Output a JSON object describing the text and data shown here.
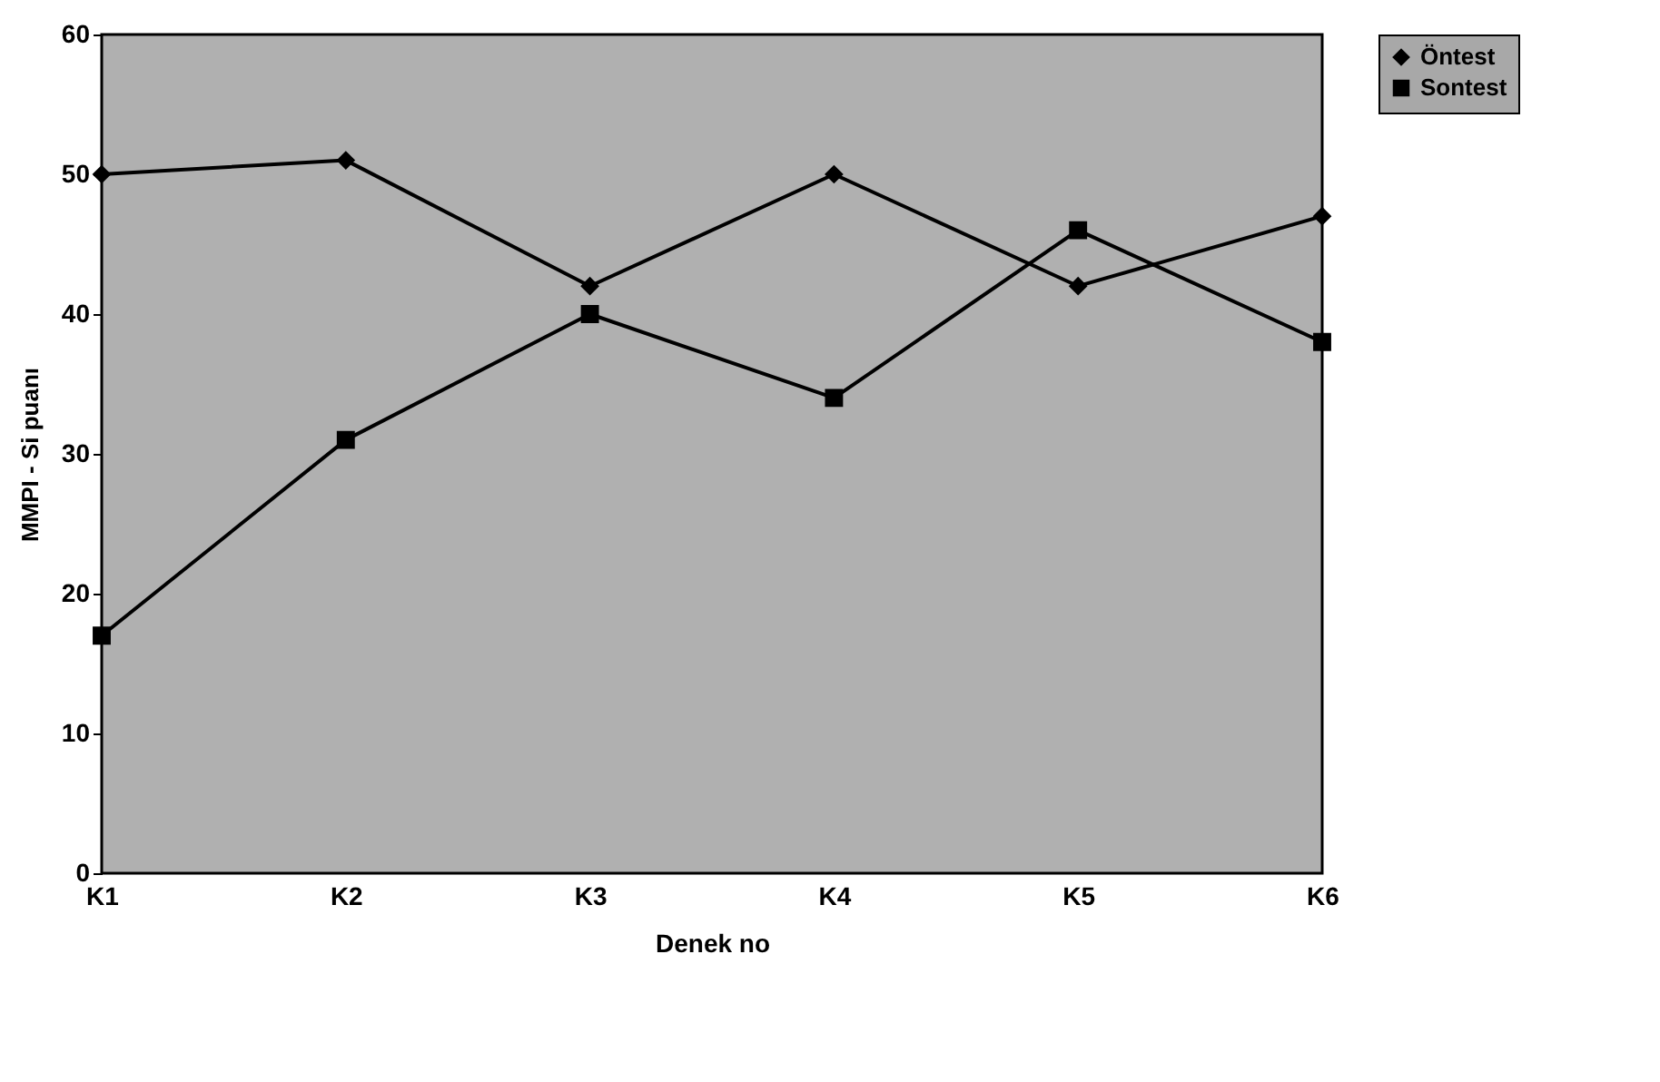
{
  "chart_data": {
    "type": "line",
    "xlabel": "Denek no",
    "ylabel": "MMPI - Si puanı",
    "categories": [
      "K1",
      "K2",
      "K3",
      "K4",
      "K5",
      "K6"
    ],
    "series": [
      {
        "name": "Öntest",
        "color": "#000000",
        "marker": "diamond",
        "values": [
          50,
          51,
          42,
          50,
          42,
          47
        ]
      },
      {
        "name": "Sontest",
        "color": "#000000",
        "marker": "square",
        "values": [
          17,
          31,
          40,
          34,
          46,
          38
        ]
      }
    ],
    "ylim": [
      0,
      60
    ],
    "yticks": [
      0,
      10,
      20,
      30,
      40,
      50,
      60
    ],
    "grid": false,
    "legend": "right"
  }
}
